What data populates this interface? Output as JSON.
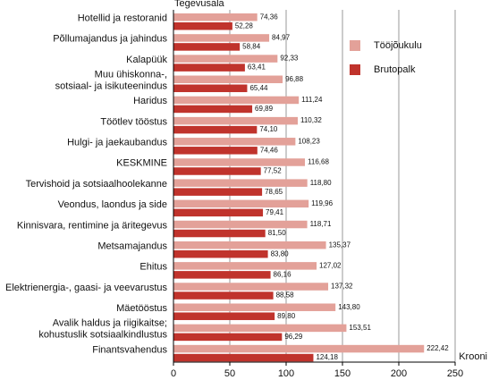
{
  "chart_data": {
    "type": "barh",
    "ylabel": "Tegevusala",
    "xlabel": "Krooni",
    "categories": [
      "Hotellid ja restoranid",
      "Põllumajandus ja jahindus",
      "Kalapüük",
      "Muu ühiskonna-,\nsotsiaal- ja isikuteenindus",
      "Haridus",
      "Töötlev tööstus",
      "Hulgi- ja jaekaubandus",
      "KESKMINE",
      "Tervishoid ja sotsiaalhoolekanne",
      "Veondus, laondus ja side",
      "Kinnisvara, rentimine ja äritegevus",
      "Metsamajandus",
      "Ehitus",
      "Elektrienergia-, gaasi- ja veevarustus",
      "Mäetööstus",
      "Avalik haldus ja riigikaitse;\nkohustuslik sotsiaalkindlustus",
      "Finantsvahendus"
    ],
    "series": [
      {
        "name": "Tööjõukulu",
        "color": "#e3a199",
        "values": [
          74.36,
          84.97,
          92.33,
          96.88,
          111.24,
          110.32,
          108.23,
          116.68,
          118.8,
          119.96,
          118.71,
          135.37,
          127.02,
          137.32,
          143.8,
          153.51,
          222.42
        ],
        "value_labels": [
          "74,36",
          "84,97",
          "92,33",
          "96,88",
          "111,24",
          "110,32",
          "108,23",
          "116,68",
          "118,80",
          "119,96",
          "118,71",
          "135,37",
          "127,02",
          "137,32",
          "143,80",
          "153,51",
          "222,42"
        ]
      },
      {
        "name": "Brutopalk",
        "color": "#c0332c",
        "values": [
          52.28,
          58.84,
          63.41,
          65.44,
          69.89,
          74.1,
          74.46,
          77.52,
          78.65,
          79.41,
          81.5,
          83.8,
          86.16,
          88.58,
          89.8,
          96.29,
          124.18
        ],
        "value_labels": [
          "52,28",
          "58,84",
          "63,41",
          "65,44",
          "69,89",
          "74,10",
          "74,46",
          "77,52",
          "78,65",
          "79,41",
          "81,50",
          "83,80",
          "86,16",
          "88,58",
          "89,80",
          "96,29",
          "124,18"
        ]
      }
    ],
    "xlim": [
      0,
      250
    ],
    "xticks": [
      0,
      50,
      100,
      150,
      200,
      250
    ],
    "grid": true
  }
}
